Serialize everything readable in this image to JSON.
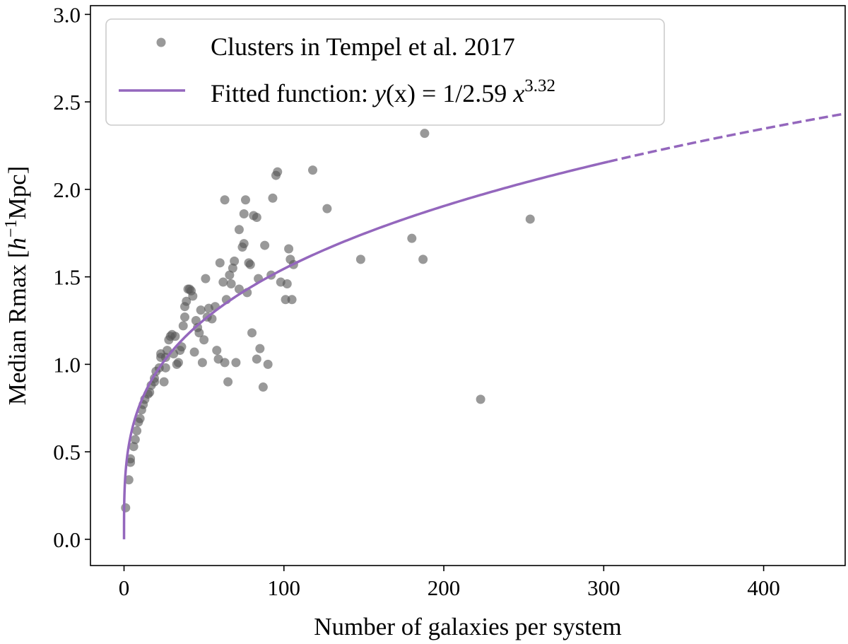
{
  "chart_data": {
    "type": "scatter",
    "xlabel": "Number of galaxies per system",
    "ylabel_parts": {
      "before": "Median Rmax [",
      "italic": "h",
      "sup": "−1",
      "after": "Mpc]"
    },
    "xlim": [
      -21,
      451
    ],
    "ylim": [
      -0.15,
      3.05
    ],
    "xticks": [
      0,
      100,
      200,
      300,
      400
    ],
    "xtick_labels": [
      "0",
      "100",
      "200",
      "300",
      "400"
    ],
    "yticks": [
      0.0,
      0.5,
      1.0,
      1.5,
      2.0,
      2.5,
      3.0
    ],
    "ytick_labels": [
      "0.0",
      "0.5",
      "1.0",
      "1.5",
      "2.0",
      "2.5",
      "3.0"
    ],
    "grid": false,
    "legend_placement": "top-left",
    "legend": [
      {
        "label": "Clusters in Tempel et al. 2017",
        "kind": "marker"
      },
      {
        "label": "Fitted function: y(x) = 1/2.59 x^3.32",
        "kind": "line",
        "parts": {
          "prefix": "Fitted function: ",
          "fx": "y",
          "paren": "(x)",
          "mid": " = 1/2.59 ",
          "var": "x",
          "sup": "3.32"
        }
      }
    ],
    "colors": {
      "points": "#555555",
      "fit": "#9467bd"
    },
    "series": [
      {
        "name": "Clusters in Tempel et al. 2017",
        "type": "scatter",
        "points": [
          [
            1,
            0.18
          ],
          [
            3,
            0.34
          ],
          [
            4,
            0.44
          ],
          [
            4,
            0.46
          ],
          [
            6,
            0.53
          ],
          [
            7,
            0.57
          ],
          [
            8,
            0.62
          ],
          [
            9,
            0.67
          ],
          [
            10,
            0.69
          ],
          [
            11,
            0.74
          ],
          [
            12,
            0.77
          ],
          [
            13,
            0.8
          ],
          [
            15,
            0.83
          ],
          [
            16,
            0.84
          ],
          [
            17,
            0.88
          ],
          [
            19,
            0.9
          ],
          [
            19,
            0.92
          ],
          [
            20,
            0.96
          ],
          [
            22,
            0.98
          ],
          [
            23,
            1.04
          ],
          [
            23,
            1.06
          ],
          [
            25,
            0.9
          ],
          [
            26,
            0.98
          ],
          [
            26,
            1.04
          ],
          [
            27,
            1.08
          ],
          [
            28,
            1.14
          ],
          [
            29,
            1.16
          ],
          [
            30,
            1.17
          ],
          [
            31,
            1.06
          ],
          [
            32,
            1.16
          ],
          [
            33,
            1.0
          ],
          [
            34,
            1.01
          ],
          [
            35,
            1.08
          ],
          [
            36,
            1.1
          ],
          [
            37,
            1.22
          ],
          [
            38,
            1.33
          ],
          [
            38,
            1.27
          ],
          [
            39,
            1.36
          ],
          [
            40,
            1.43
          ],
          [
            41,
            1.43
          ],
          [
            42,
            1.42
          ],
          [
            43,
            1.39
          ],
          [
            44,
            1.07
          ],
          [
            45,
            1.25
          ],
          [
            46,
            1.21
          ],
          [
            47,
            1.18
          ],
          [
            48,
            1.31
          ],
          [
            49,
            1.01
          ],
          [
            50,
            1.14
          ],
          [
            51,
            1.49
          ],
          [
            52,
            1.27
          ],
          [
            53,
            1.32
          ],
          [
            55,
            1.26
          ],
          [
            57,
            1.33
          ],
          [
            58,
            1.08
          ],
          [
            59,
            1.03
          ],
          [
            60,
            1.58
          ],
          [
            63,
            1.94
          ],
          [
            62,
            1.47
          ],
          [
            63,
            1.01
          ],
          [
            64,
            1.37
          ],
          [
            65,
            0.9
          ],
          [
            66,
            1.51
          ],
          [
            67,
            1.46
          ],
          [
            68,
            1.55
          ],
          [
            69,
            1.59
          ],
          [
            70,
            1.01
          ],
          [
            72,
            1.77
          ],
          [
            72,
            1.43
          ],
          [
            74,
            1.67
          ],
          [
            75,
            1.86
          ],
          [
            75,
            1.69
          ],
          [
            76,
            1.94
          ],
          [
            77,
            1.41
          ],
          [
            78,
            1.58
          ],
          [
            79,
            1.57
          ],
          [
            80,
            1.18
          ],
          [
            81,
            1.85
          ],
          [
            83,
            1.03
          ],
          [
            83,
            1.84
          ],
          [
            84,
            1.49
          ],
          [
            85,
            1.09
          ],
          [
            87,
            0.87
          ],
          [
            88,
            1.68
          ],
          [
            90,
            1.0
          ],
          [
            92,
            1.51
          ],
          [
            93,
            1.95
          ],
          [
            95,
            2.08
          ],
          [
            96,
            2.1
          ],
          [
            98,
            1.47
          ],
          [
            101,
            1.37
          ],
          [
            102,
            1.46
          ],
          [
            103,
            1.66
          ],
          [
            104,
            1.6
          ],
          [
            105,
            1.37
          ],
          [
            106,
            1.57
          ],
          [
            118,
            2.11
          ],
          [
            127,
            1.89
          ],
          [
            148,
            1.6
          ],
          [
            180,
            1.72
          ],
          [
            187,
            1.6
          ],
          [
            188,
            2.32
          ],
          [
            223,
            0.8
          ],
          [
            254,
            1.83
          ]
        ]
      },
      {
        "name": "Fitted function: y(x) = 1/2.59 x^3.32",
        "type": "line",
        "function": {
          "divisor": 2.59,
          "root": 3.32
        },
        "solid_range": [
          0,
          303
        ],
        "dashed_range": [
          303,
          451
        ]
      }
    ]
  }
}
